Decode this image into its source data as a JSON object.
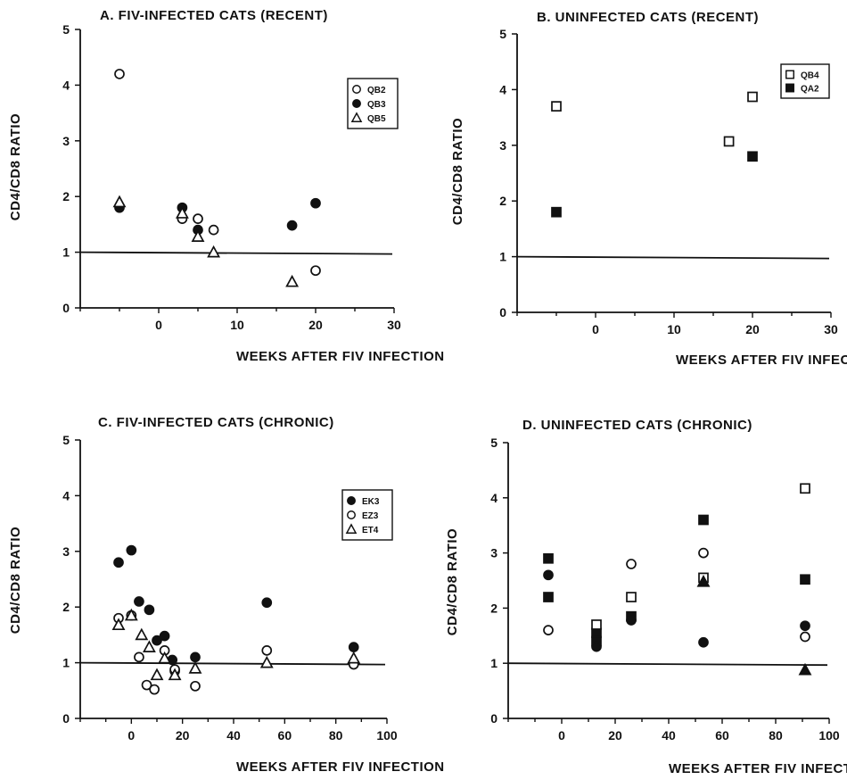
{
  "chart_data": [
    {
      "type": "scatter",
      "title": "A.  FIV-INFECTED CATS (RECENT)",
      "xlabel": "WEEKS AFTER FIV INFECTION",
      "ylabel": "CD4/CD8  RATIO",
      "xlim": [
        -10,
        30
      ],
      "ylim": [
        0,
        5
      ],
      "xticks": [
        "0",
        "10",
        "20",
        "30"
      ],
      "yticks": [
        "0",
        "1",
        "2",
        "3",
        "4",
        "5"
      ],
      "reference_line": 1,
      "legend_position": "top-right",
      "series": [
        {
          "name": "QB2",
          "marker": "circle-open",
          "points": [
            [
              -5,
              4.2
            ],
            [
              3,
              1.6
            ],
            [
              5,
              1.6
            ],
            [
              7,
              1.4
            ],
            [
              20,
              0.67
            ]
          ]
        },
        {
          "name": "QB3",
          "marker": "circle-filled",
          "points": [
            [
              -5,
              1.8
            ],
            [
              3,
              1.8
            ],
            [
              5,
              1.4
            ],
            [
              17,
              1.48
            ],
            [
              20,
              1.88
            ]
          ]
        },
        {
          "name": "QB5",
          "marker": "triangle-open",
          "points": [
            [
              -5,
              1.9
            ],
            [
              3,
              1.7
            ],
            [
              5,
              1.28
            ],
            [
              7,
              1.0
            ],
            [
              17,
              0.47
            ]
          ]
        }
      ]
    },
    {
      "type": "scatter",
      "title": "B.  UNINFECTED CATS (RECENT)",
      "xlabel": "WEEKS AFTER FIV INFECTION",
      "ylabel": "CD4/CD8  RATIO",
      "xlim": [
        -10,
        30
      ],
      "ylim": [
        0,
        5
      ],
      "xticks": [
        "0",
        "10",
        "20",
        "30"
      ],
      "yticks": [
        "0",
        "1",
        "2",
        "3",
        "4",
        "5"
      ],
      "reference_line": 1,
      "legend_position": "top-right",
      "series": [
        {
          "name": "QB4",
          "marker": "square-open",
          "points": [
            [
              -5,
              3.7
            ],
            [
              17,
              3.07
            ],
            [
              20,
              3.87
            ]
          ]
        },
        {
          "name": "QA2",
          "marker": "square-filled",
          "points": [
            [
              -5,
              1.8
            ],
            [
              20,
              2.8
            ]
          ]
        }
      ]
    },
    {
      "type": "scatter",
      "title": "C.  FIV-INFECTED CATS (CHRONIC)",
      "xlabel": "WEEKS AFTER FIV INFECTION",
      "ylabel": "CD4/CD8 RATIO",
      "xlim": [
        -20,
        100
      ],
      "ylim": [
        0,
        5
      ],
      "xticks": [
        "0",
        "20",
        "40",
        "60",
        "80",
        "100"
      ],
      "yticks": [
        "0",
        "1",
        "2",
        "3",
        "4",
        "5"
      ],
      "reference_line": 1,
      "legend_position": "top-right",
      "series": [
        {
          "name": "EK3",
          "marker": "circle-filled",
          "points": [
            [
              -5,
              2.8
            ],
            [
              0,
              3.02
            ],
            [
              3,
              2.1
            ],
            [
              7,
              1.95
            ],
            [
              10,
              1.4
            ],
            [
              13,
              1.48
            ],
            [
              16,
              1.05
            ],
            [
              17,
              0.85
            ],
            [
              25,
              1.1
            ],
            [
              53,
              2.08
            ],
            [
              87,
              1.28
            ]
          ]
        },
        {
          "name": "EZ3",
          "marker": "circle-open",
          "points": [
            [
              -5,
              1.8
            ],
            [
              0,
              1.85
            ],
            [
              3,
              1.1
            ],
            [
              6,
              0.6
            ],
            [
              9,
              0.52
            ],
            [
              13,
              1.22
            ],
            [
              17,
              0.88
            ],
            [
              25,
              0.58
            ],
            [
              53,
              1.22
            ],
            [
              87,
              0.97
            ]
          ]
        },
        {
          "name": "ET4",
          "marker": "triangle-open",
          "points": [
            [
              -5,
              1.68
            ],
            [
              0,
              1.85
            ],
            [
              4,
              1.5
            ],
            [
              7,
              1.28
            ],
            [
              10,
              0.78
            ],
            [
              13,
              1.08
            ],
            [
              17,
              0.78
            ],
            [
              25,
              0.9
            ],
            [
              53,
              1.0
            ],
            [
              87,
              1.08
            ]
          ]
        }
      ]
    },
    {
      "type": "scatter",
      "title": "D.  UNINFECTED CATS (CHRONIC)",
      "xlabel": "WEEKS AFTER FIV INFECTION",
      "ylabel": "CD4/CD8  RATIO",
      "xlim": [
        -20,
        100
      ],
      "ylim": [
        0,
        5
      ],
      "xticks": [
        "0",
        "20",
        "40",
        "60",
        "80",
        "100"
      ],
      "yticks": [
        "0",
        "1",
        "2",
        "3",
        "4",
        "5"
      ],
      "reference_line": 1,
      "legend_position": "none",
      "series": [
        {
          "marker": "square-filled",
          "points": [
            [
              -5,
              2.9
            ],
            [
              -5,
              2.2
            ],
            [
              13,
              1.55
            ],
            [
              13,
              1.4
            ],
            [
              26,
              1.85
            ],
            [
              53,
              3.6
            ],
            [
              91,
              2.52
            ]
          ]
        },
        {
          "marker": "square-open",
          "points": [
            [
              13,
              1.7
            ],
            [
              26,
              2.2
            ],
            [
              53,
              2.55
            ],
            [
              91,
              4.17
            ]
          ]
        },
        {
          "marker": "circle-filled",
          "points": [
            [
              -5,
              2.6
            ],
            [
              13,
              1.3
            ],
            [
              26,
              1.78
            ],
            [
              53,
              1.38
            ],
            [
              91,
              1.68
            ]
          ]
        },
        {
          "marker": "circle-open",
          "points": [
            [
              -5,
              1.6
            ],
            [
              26,
              2.8
            ],
            [
              53,
              3.0
            ],
            [
              91,
              1.48
            ]
          ]
        },
        {
          "marker": "triangle-filled",
          "points": [
            [
              53,
              2.48
            ],
            [
              91,
              0.88
            ]
          ]
        }
      ]
    }
  ]
}
